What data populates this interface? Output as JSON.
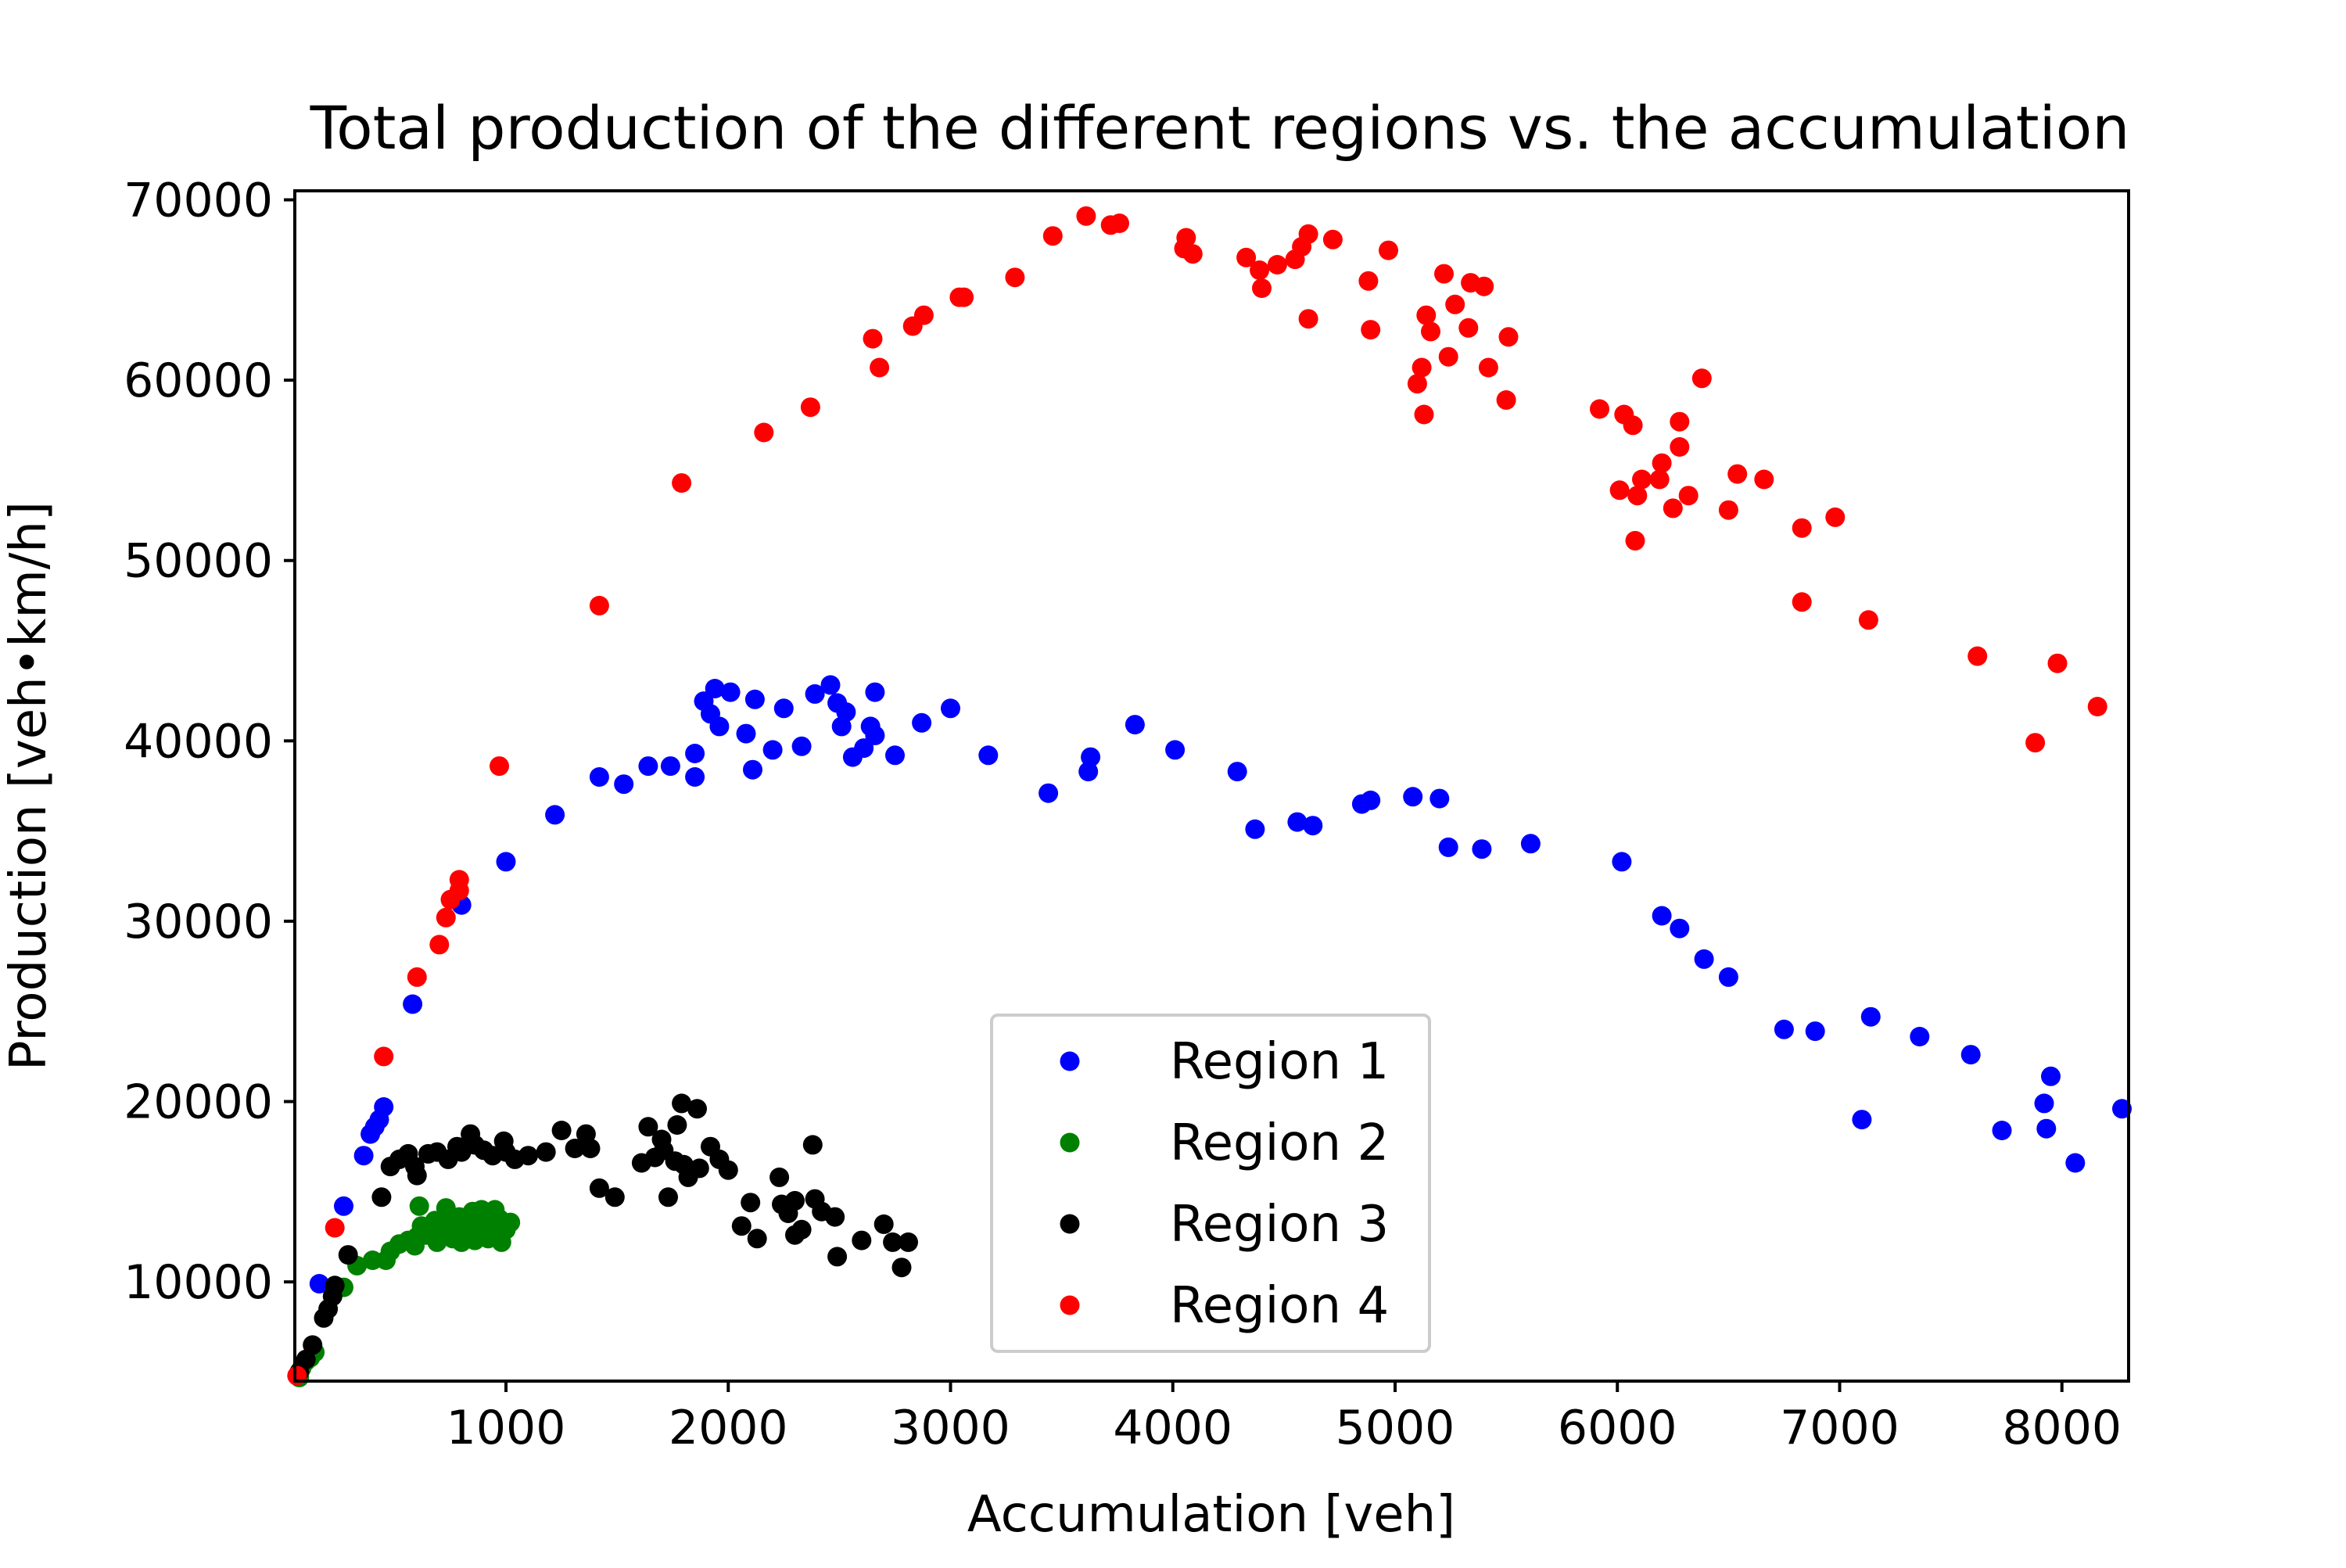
{
  "chart_data": {
    "type": "scatter",
    "title": "Total production of the different regions vs. the accumulation",
    "xlabel": "Accumulation [veh]",
    "ylabel": "Production [veh•km/h]",
    "xlim": [
      50,
      8300
    ],
    "ylim": [
      4500,
      70500
    ],
    "xticks": [
      1000,
      2000,
      3000,
      4000,
      5000,
      6000,
      7000,
      8000
    ],
    "xtick_labels": [
      "1000",
      "2000",
      "3000",
      "4000",
      "5000",
      "6000",
      "7000",
      "8000"
    ],
    "yticks": [
      10000,
      20000,
      30000,
      40000,
      50000,
      60000,
      70000
    ],
    "ytick_labels": [
      "10000",
      "20000",
      "30000",
      "40000",
      "50000",
      "60000",
      "70000"
    ],
    "grid": false,
    "legend_position": "lower-center",
    "series": [
      {
        "name": "Region 1",
        "color": "#0000ff",
        "points": [
          [
            160,
            9900
          ],
          [
            270,
            14200
          ],
          [
            360,
            17000
          ],
          [
            390,
            18200
          ],
          [
            410,
            18600
          ],
          [
            430,
            19000
          ],
          [
            450,
            19700
          ],
          [
            580,
            25400
          ],
          [
            800,
            30900
          ],
          [
            1000,
            33300
          ],
          [
            1220,
            35900
          ],
          [
            1420,
            38000
          ],
          [
            1530,
            37600
          ],
          [
            1640,
            38600
          ],
          [
            1740,
            38600
          ],
          [
            1850,
            38000
          ],
          [
            1850,
            39300
          ],
          [
            1890,
            42200
          ],
          [
            1920,
            41500
          ],
          [
            1940,
            42900
          ],
          [
            1960,
            40800
          ],
          [
            2010,
            42700
          ],
          [
            2080,
            40400
          ],
          [
            2110,
            38400
          ],
          [
            2120,
            42300
          ],
          [
            2200,
            39500
          ],
          [
            2250,
            41800
          ],
          [
            2330,
            39700
          ],
          [
            2390,
            42600
          ],
          [
            2460,
            43100
          ],
          [
            2490,
            42100
          ],
          [
            2510,
            40800
          ],
          [
            2530,
            41600
          ],
          [
            2560,
            39100
          ],
          [
            2610,
            39600
          ],
          [
            2640,
            40800
          ],
          [
            2660,
            40300
          ],
          [
            2660,
            42700
          ],
          [
            2750,
            39200
          ],
          [
            2870,
            41000
          ],
          [
            3000,
            41800
          ],
          [
            3170,
            39200
          ],
          [
            3440,
            37100
          ],
          [
            3620,
            38300
          ],
          [
            3630,
            39100
          ],
          [
            3830,
            40900
          ],
          [
            4010,
            39500
          ],
          [
            4290,
            38300
          ],
          [
            4370,
            35100
          ],
          [
            4560,
            35500
          ],
          [
            4630,
            35300
          ],
          [
            4850,
            36500
          ],
          [
            4890,
            36700
          ],
          [
            5080,
            36900
          ],
          [
            5200,
            36800
          ],
          [
            5240,
            34100
          ],
          [
            5390,
            34000
          ],
          [
            5610,
            34300
          ],
          [
            6020,
            33300
          ],
          [
            6200,
            30300
          ],
          [
            6280,
            29600
          ],
          [
            6390,
            27900
          ],
          [
            6500,
            26900
          ],
          [
            6750,
            24000
          ],
          [
            6890,
            23900
          ],
          [
            7100,
            19000
          ],
          [
            7140,
            24700
          ],
          [
            7360,
            23600
          ],
          [
            7590,
            22600
          ],
          [
            7730,
            18400
          ],
          [
            7920,
            19900
          ],
          [
            7930,
            18500
          ],
          [
            7950,
            21400
          ],
          [
            8060,
            16600
          ],
          [
            8270,
            19600
          ]
        ]
      },
      {
        "name": "Region 2",
        "color": "#008000",
        "points": [
          [
            70,
            4700
          ],
          [
            80,
            5200
          ],
          [
            100,
            5600
          ],
          [
            120,
            5800
          ],
          [
            140,
            6100
          ],
          [
            270,
            9700
          ],
          [
            330,
            10900
          ],
          [
            400,
            11200
          ],
          [
            460,
            11200
          ],
          [
            480,
            11700
          ],
          [
            520,
            12100
          ],
          [
            560,
            12300
          ],
          [
            590,
            12000
          ],
          [
            600,
            12500
          ],
          [
            610,
            14200
          ],
          [
            620,
            13100
          ],
          [
            640,
            12600
          ],
          [
            660,
            12900
          ],
          [
            680,
            13400
          ],
          [
            690,
            12200
          ],
          [
            700,
            13200
          ],
          [
            720,
            12800
          ],
          [
            730,
            14100
          ],
          [
            750,
            13500
          ],
          [
            760,
            12400
          ],
          [
            780,
            12900
          ],
          [
            790,
            13600
          ],
          [
            800,
            12200
          ],
          [
            820,
            13000
          ],
          [
            840,
            12700
          ],
          [
            850,
            13900
          ],
          [
            860,
            12300
          ],
          [
            880,
            13300
          ],
          [
            890,
            14000
          ],
          [
            900,
            12600
          ],
          [
            910,
            13600
          ],
          [
            920,
            12400
          ],
          [
            940,
            13100
          ],
          [
            950,
            14000
          ],
          [
            960,
            12800
          ],
          [
            970,
            13500
          ],
          [
            980,
            12200
          ],
          [
            1000,
            12900
          ],
          [
            1020,
            13300
          ]
        ]
      },
      {
        "name": "Region 3",
        "color": "#000000",
        "points": [
          [
            70,
            5000
          ],
          [
            100,
            5700
          ],
          [
            130,
            6500
          ],
          [
            180,
            8000
          ],
          [
            200,
            8500
          ],
          [
            220,
            9200
          ],
          [
            230,
            9800
          ],
          [
            290,
            11500
          ],
          [
            440,
            14700
          ],
          [
            480,
            16400
          ],
          [
            520,
            16800
          ],
          [
            560,
            17100
          ],
          [
            590,
            16400
          ],
          [
            600,
            15900
          ],
          [
            650,
            17100
          ],
          [
            690,
            17200
          ],
          [
            740,
            16800
          ],
          [
            780,
            17500
          ],
          [
            800,
            17200
          ],
          [
            840,
            18200
          ],
          [
            860,
            17600
          ],
          [
            900,
            17300
          ],
          [
            940,
            17000
          ],
          [
            990,
            17800
          ],
          [
            1000,
            17200
          ],
          [
            1040,
            16800
          ],
          [
            1100,
            17000
          ],
          [
            1180,
            17200
          ],
          [
            1250,
            18400
          ],
          [
            1310,
            17400
          ],
          [
            1360,
            18200
          ],
          [
            1380,
            17400
          ],
          [
            1420,
            15200
          ],
          [
            1490,
            14700
          ],
          [
            1610,
            16600
          ],
          [
            1640,
            18600
          ],
          [
            1670,
            16900
          ],
          [
            1700,
            17900
          ],
          [
            1710,
            17300
          ],
          [
            1730,
            14700
          ],
          [
            1760,
            16700
          ],
          [
            1770,
            18700
          ],
          [
            1790,
            19900
          ],
          [
            1800,
            16500
          ],
          [
            1820,
            15800
          ],
          [
            1860,
            19600
          ],
          [
            1870,
            16300
          ],
          [
            1920,
            17500
          ],
          [
            1960,
            16800
          ],
          [
            2000,
            16200
          ],
          [
            2060,
            13100
          ],
          [
            2100,
            14400
          ],
          [
            2130,
            12400
          ],
          [
            2230,
            15800
          ],
          [
            2240,
            14300
          ],
          [
            2270,
            13800
          ],
          [
            2300,
            14500
          ],
          [
            2300,
            12600
          ],
          [
            2330,
            12900
          ],
          [
            2380,
            17600
          ],
          [
            2390,
            14600
          ],
          [
            2420,
            13900
          ],
          [
            2480,
            13600
          ],
          [
            2490,
            11400
          ],
          [
            2600,
            12300
          ],
          [
            2700,
            13200
          ],
          [
            2740,
            12200
          ],
          [
            2780,
            10800
          ],
          [
            2810,
            12200
          ]
        ]
      },
      {
        "name": "Region 4",
        "color": "#ff0000",
        "points": [
          [
            60,
            4800
          ],
          [
            230,
            13000
          ],
          [
            450,
            22500
          ],
          [
            600,
            26900
          ],
          [
            700,
            28700
          ],
          [
            730,
            30200
          ],
          [
            750,
            31200
          ],
          [
            790,
            32300
          ],
          [
            790,
            31700
          ],
          [
            970,
            38600
          ],
          [
            1420,
            47500
          ],
          [
            1790,
            54300
          ],
          [
            2160,
            57100
          ],
          [
            2370,
            58500
          ],
          [
            2650,
            62300
          ],
          [
            2680,
            60700
          ],
          [
            2830,
            63000
          ],
          [
            2880,
            63600
          ],
          [
            3040,
            64600
          ],
          [
            3060,
            64600
          ],
          [
            3290,
            65700
          ],
          [
            3460,
            68000
          ],
          [
            3610,
            69100
          ],
          [
            3720,
            68600
          ],
          [
            3760,
            68700
          ],
          [
            4050,
            67300
          ],
          [
            4060,
            67900
          ],
          [
            4090,
            67000
          ],
          [
            4330,
            66800
          ],
          [
            4390,
            66100
          ],
          [
            4400,
            65100
          ],
          [
            4470,
            66400
          ],
          [
            4550,
            66700
          ],
          [
            4580,
            67400
          ],
          [
            4610,
            68100
          ],
          [
            4610,
            63400
          ],
          [
            4720,
            67800
          ],
          [
            4880,
            65500
          ],
          [
            4890,
            62800
          ],
          [
            4970,
            67200
          ],
          [
            5100,
            59800
          ],
          [
            5120,
            60700
          ],
          [
            5130,
            58100
          ],
          [
            5140,
            63600
          ],
          [
            5160,
            62700
          ],
          [
            5220,
            65900
          ],
          [
            5240,
            61300
          ],
          [
            5270,
            64200
          ],
          [
            5330,
            62900
          ],
          [
            5340,
            65400
          ],
          [
            5400,
            65200
          ],
          [
            5420,
            60700
          ],
          [
            5500,
            58900
          ],
          [
            5510,
            62400
          ],
          [
            5920,
            58400
          ],
          [
            6010,
            53900
          ],
          [
            6030,
            58100
          ],
          [
            6070,
            57500
          ],
          [
            6080,
            51100
          ],
          [
            6090,
            53600
          ],
          [
            6110,
            54500
          ],
          [
            6190,
            54500
          ],
          [
            6200,
            55400
          ],
          [
            6250,
            52900
          ],
          [
            6280,
            57700
          ],
          [
            6280,
            56300
          ],
          [
            6320,
            53600
          ],
          [
            6380,
            60100
          ],
          [
            6500,
            52800
          ],
          [
            6540,
            54800
          ],
          [
            6660,
            54500
          ],
          [
            6830,
            51800
          ],
          [
            6830,
            47700
          ],
          [
            6980,
            52400
          ],
          [
            7130,
            46700
          ],
          [
            7620,
            44700
          ],
          [
            7880,
            39900
          ],
          [
            7980,
            44300
          ],
          [
            8160,
            41900
          ]
        ]
      }
    ]
  }
}
